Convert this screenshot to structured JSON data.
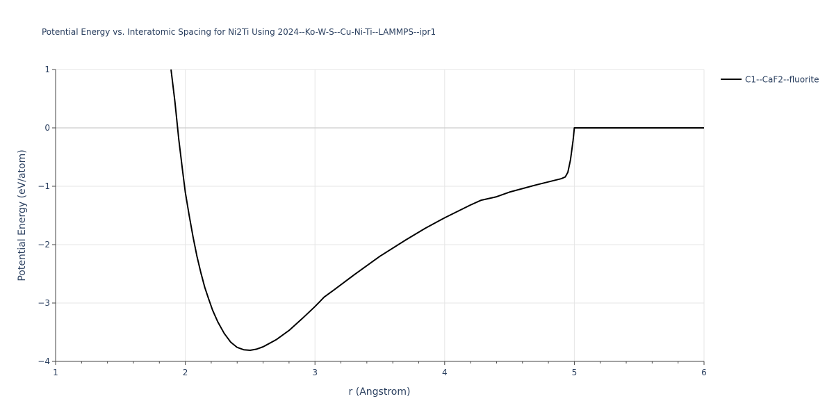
{
  "chart_data": {
    "type": "line",
    "title": "Potential Energy vs. Interatomic Spacing for Ni2Ti Using 2024--Ko-W-S--Cu-Ni-Ti--LAMMPS--ipr1",
    "xlabel": "r (Angstrom)",
    "ylabel": "Potential Energy (eV/atom)",
    "xlim": [
      1,
      6
    ],
    "ylim": [
      -4,
      1
    ],
    "xticks": [
      1,
      2,
      3,
      4,
      5,
      6
    ],
    "xtick_labels": [
      "1",
      "2",
      "3",
      "4",
      "5",
      "6"
    ],
    "yticks": [
      1,
      0,
      -1,
      -2,
      -3,
      -4
    ],
    "ytick_labels": [
      "1",
      "0",
      "−1",
      "−2",
      "−3",
      "−4"
    ],
    "grid": true,
    "legend_position": "top-right",
    "series": [
      {
        "name": "C1--CaF2--fluorite",
        "color": "#000000",
        "x": [
          1.89,
          1.92,
          1.95,
          1.98,
          2.0,
          2.03,
          2.06,
          2.09,
          2.12,
          2.15,
          2.18,
          2.21,
          2.25,
          2.3,
          2.35,
          2.4,
          2.45,
          2.5,
          2.55,
          2.6,
          2.7,
          2.8,
          2.9,
          3.0,
          3.04,
          3.07,
          3.15,
          3.3,
          3.5,
          3.7,
          3.85,
          4.0,
          4.1,
          4.2,
          4.28,
          4.32,
          4.4,
          4.5,
          4.7,
          4.9,
          4.93,
          4.95,
          4.97,
          4.99,
          5.0,
          5.5,
          6.0
        ],
        "y": [
          1.0,
          0.45,
          -0.2,
          -0.75,
          -1.1,
          -1.5,
          -1.87,
          -2.2,
          -2.48,
          -2.73,
          -2.93,
          -3.12,
          -3.32,
          -3.52,
          -3.67,
          -3.76,
          -3.8,
          -3.81,
          -3.79,
          -3.75,
          -3.63,
          -3.47,
          -3.27,
          -3.06,
          -2.97,
          -2.9,
          -2.77,
          -2.52,
          -2.2,
          -1.92,
          -1.72,
          -1.54,
          -1.43,
          -1.32,
          -1.24,
          -1.22,
          -1.18,
          -1.1,
          -0.98,
          -0.87,
          -0.84,
          -0.76,
          -0.55,
          -0.22,
          0.0,
          0.0,
          0.0
        ]
      }
    ]
  }
}
